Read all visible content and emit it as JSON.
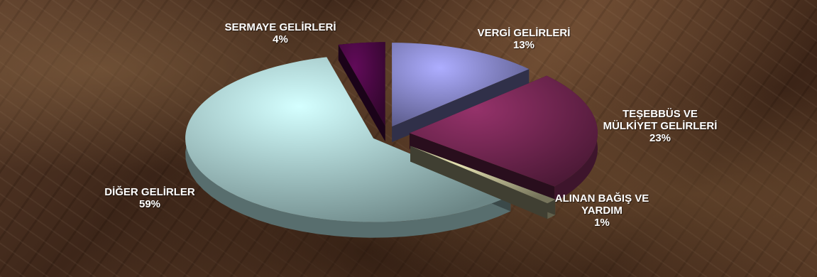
{
  "chart_data": {
    "type": "pie",
    "style": "3d-exploded",
    "slices": [
      {
        "label": "VERGİ GELİRLERİ",
        "pct_label": "13%",
        "value": 13,
        "color": "#a0a0f4"
      },
      {
        "label": "TEŞEBBÜS VE MÜLKİYET GELİRLERİ",
        "pct_label": "23%",
        "value": 23,
        "color": "#8a2e62"
      },
      {
        "label": "ALINAN BAĞIŞ VE YARDIM",
        "pct_label": "1%",
        "value": 1,
        "color": "#d6d2a6"
      },
      {
        "label": "DİĞER GELİRLER",
        "pct_label": "59%",
        "value": 59,
        "color": "#c4f4f4"
      },
      {
        "label": "SERMAYE GELİRLERİ",
        "pct_label": "4%",
        "value": 4,
        "color": "#5a0a52"
      }
    ]
  },
  "labels": {
    "vergi": {
      "lines": [
        "VERGİ GELİRLERİ"
      ],
      "pct": "13%"
    },
    "tesebbus": {
      "lines": [
        "TEŞEBBÜS VE",
        "MÜLKİYET GELİRLERİ"
      ],
      "pct": "23%"
    },
    "bagis": {
      "lines": [
        "ALINAN BAĞIŞ VE",
        "YARDIM"
      ],
      "pct": "1%"
    },
    "diger": {
      "lines": [
        "DİĞER GELİRLER"
      ],
      "pct": "59%"
    },
    "sermaye": {
      "lines": [
        "SERMAYE GELİRLERİ"
      ],
      "pct": "4%"
    }
  }
}
